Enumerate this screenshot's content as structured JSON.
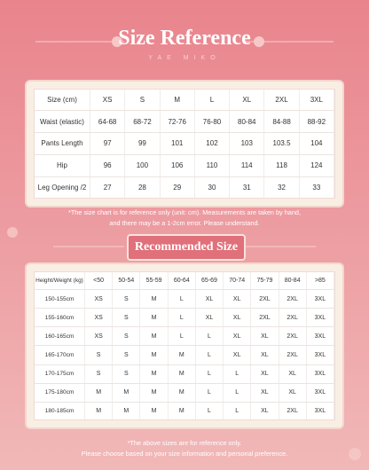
{
  "header": {
    "title": "Size Reference",
    "subtitle": "YAE MIKO"
  },
  "size_table": {
    "header": [
      "Size (cm)",
      "XS",
      "S",
      "M",
      "L",
      "XL",
      "2XL",
      "3XL"
    ],
    "rows": [
      [
        "Waist (elastic)",
        "64-68",
        "68-72",
        "72-76",
        "76-80",
        "80-84",
        "84-88",
        "88-92"
      ],
      [
        "Pants Length",
        "97",
        "99",
        "101",
        "102",
        "103",
        "103.5",
        "104"
      ],
      [
        "Hip",
        "96",
        "100",
        "106",
        "110",
        "114",
        "118",
        "124"
      ],
      [
        "Leg Opening /2",
        "27",
        "28",
        "29",
        "30",
        "31",
        "32",
        "33"
      ]
    ]
  },
  "size_note": [
    "*The size chart is for reference only (unit: cm). Measurements are taken by hand,",
    "and there may be a 1-2cm error. Please understand."
  ],
  "recommend_title": "Recommended Size",
  "recommend_table": {
    "header": [
      "Height/Weight (kg)",
      "<50",
      "50-54",
      "55-59",
      "60-64",
      "65-69",
      "70-74",
      "75-79",
      "80-84",
      ">85"
    ],
    "rows": [
      [
        "150-155cm",
        "XS",
        "S",
        "M",
        "L",
        "XL",
        "XL",
        "2XL",
        "2XL",
        "3XL"
      ],
      [
        "155-160cm",
        "XS",
        "S",
        "M",
        "L",
        "XL",
        "XL",
        "2XL",
        "2XL",
        "3XL"
      ],
      [
        "160-165cm",
        "XS",
        "S",
        "M",
        "L",
        "L",
        "XL",
        "XL",
        "2XL",
        "3XL"
      ],
      [
        "165-170cm",
        "S",
        "S",
        "M",
        "M",
        "L",
        "XL",
        "XL",
        "2XL",
        "3XL"
      ],
      [
        "170-175cm",
        "S",
        "S",
        "M",
        "M",
        "L",
        "L",
        "XL",
        "XL",
        "3XL"
      ],
      [
        "175-180cm",
        "M",
        "M",
        "M",
        "M",
        "L",
        "L",
        "XL",
        "XL",
        "3XL"
      ],
      [
        "180-185cm",
        "M",
        "M",
        "M",
        "M",
        "L",
        "L",
        "XL",
        "2XL",
        "3XL"
      ]
    ]
  },
  "recommend_note": [
    "*The above sizes are for reference only.",
    "Please choose based on your size information and personal preference."
  ]
}
